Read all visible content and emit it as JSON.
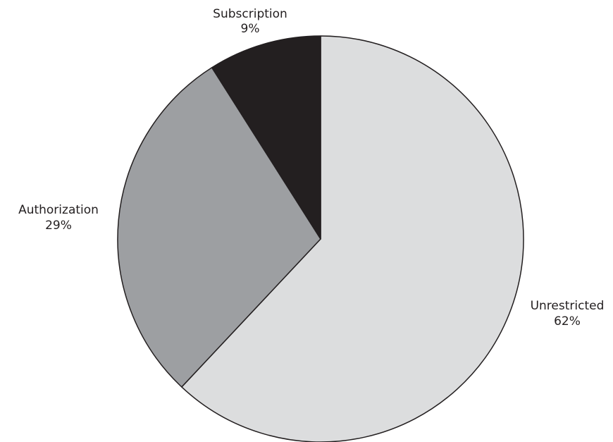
{
  "chart_data": {
    "type": "pie",
    "slices": [
      {
        "label": "Unrestricted",
        "value": 62,
        "value_label": "62%",
        "color": "#dcddde"
      },
      {
        "label": "Authorization",
        "value": 29,
        "value_label": "29%",
        "color": "#9d9fa2"
      },
      {
        "label": "Subscription",
        "value": 9,
        "value_label": "9%",
        "color": "#231f20"
      }
    ],
    "start": "12 o'clock",
    "direction": "clockwise",
    "outline_color": "#231f20"
  }
}
